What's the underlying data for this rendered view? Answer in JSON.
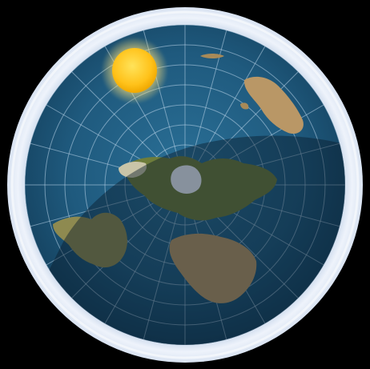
{
  "image": {
    "subject": "flat-earth-disc",
    "background_color": "#000000",
    "colors": {
      "ocean": "#1f5a7e",
      "ocean_deep": "#123c58",
      "ice_rim": "#e8eef7",
      "grid_lines": "#bcd6ea",
      "land_green": "#6e7d3b",
      "land_desert": "#b99766",
      "sun_core": "#ffc21a",
      "sun_glow": "#ffe27a",
      "night_shade": "#081a2a"
    },
    "elements": [
      {
        "name": "ice-rim",
        "kind": "outer ring"
      },
      {
        "name": "ocean-disc",
        "kind": "water"
      },
      {
        "name": "polar-grid",
        "kind": "latitude circles and meridians"
      },
      {
        "name": "north-pole-ice",
        "kind": "center ice cap"
      },
      {
        "name": "sun",
        "kind": "light source"
      },
      {
        "name": "night-shadow",
        "kind": "dark region"
      }
    ]
  }
}
